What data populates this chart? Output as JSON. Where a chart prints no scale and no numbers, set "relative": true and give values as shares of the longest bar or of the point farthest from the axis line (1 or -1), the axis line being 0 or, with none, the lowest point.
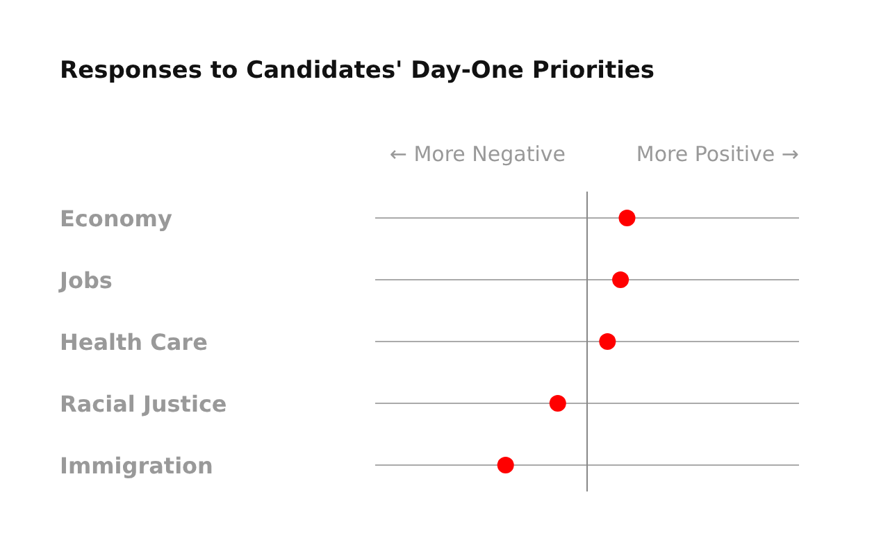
{
  "chart_data": {
    "type": "scatter",
    "title": "Responses to Candidates' Day-One Priorities",
    "orientation": "horizontal",
    "relative": true,
    "categories": [
      "Economy",
      "Jobs",
      "Health Care",
      "Racial Justice",
      "Immigration"
    ],
    "series": [
      {
        "color": "#ff0000",
        "values": [
          0.49,
          0.41,
          0.25,
          -0.36,
          -1
        ]
      }
    ],
    "annotations": [
      "← More Negative",
      "More Positive →"
    ],
    "grid": "y",
    "marker": "circle",
    "tick_labels": "y"
  }
}
